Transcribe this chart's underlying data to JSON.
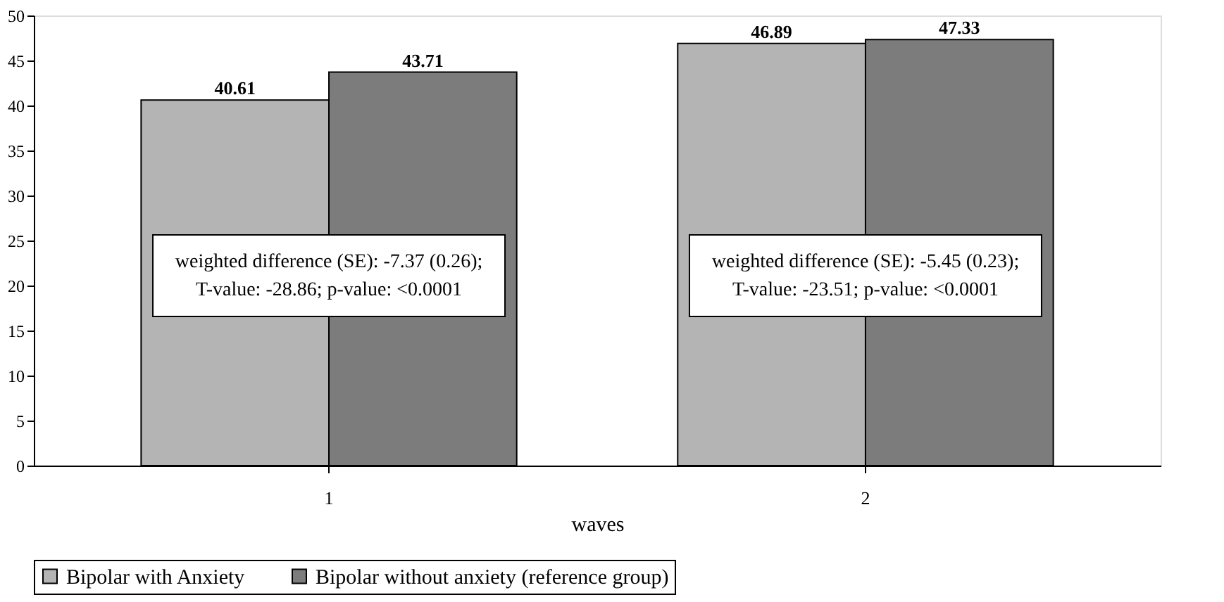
{
  "chart_data": {
    "type": "bar",
    "xlabel": "waves",
    "categories": [
      "1",
      "2"
    ],
    "series": [
      {
        "name": "Bipolar with Anxiety",
        "color": "#b4b4b4",
        "values": [
          40.61,
          46.89
        ]
      },
      {
        "name": "Bipolar without anxiety (reference group)",
        "color": "#7c7c7c",
        "values": [
          43.71,
          47.33
        ]
      }
    ],
    "ylim": [
      0,
      50
    ],
    "yticks": [
      0,
      5,
      10,
      15,
      20,
      25,
      30,
      35,
      40,
      45,
      50
    ],
    "data_labels": true,
    "legend": "bottom",
    "grid": false,
    "annotations": [
      "weighted difference (SE): -7.37 (0.26);\nT-value: -28.86; p-value: <0.0001",
      "weighted difference (SE): -5.45 (0.23);\nT-value: -23.51; p-value: <0.0001"
    ]
  }
}
